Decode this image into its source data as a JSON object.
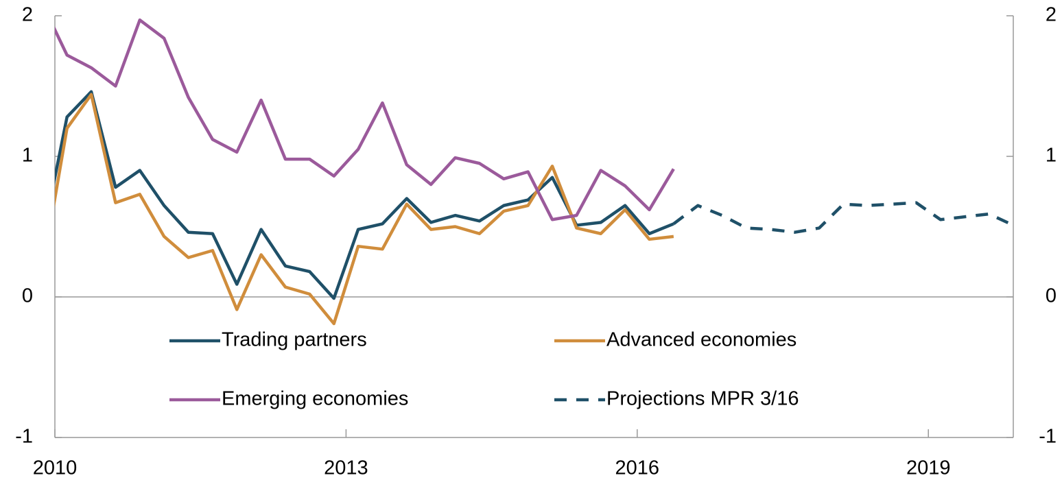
{
  "chart_data": {
    "type": "line",
    "x": [
      2009.875,
      2010.125,
      2010.375,
      2010.625,
      2010.875,
      2011.125,
      2011.375,
      2011.625,
      2011.875,
      2012.125,
      2012.375,
      2012.625,
      2012.875,
      2013.125,
      2013.375,
      2013.625,
      2013.875,
      2014.125,
      2014.375,
      2014.625,
      2014.875,
      2015.125,
      2015.375,
      2015.625,
      2015.875,
      2016.125,
      2016.375
    ],
    "series": [
      {
        "name": "Trading partners",
        "color": "#1f5068",
        "values": [
          0.42,
          1.28,
          1.46,
          0.78,
          0.9,
          0.65,
          0.46,
          0.45,
          0.09,
          0.48,
          0.22,
          0.18,
          -0.01,
          0.48,
          0.52,
          0.7,
          0.53,
          0.58,
          0.54,
          0.65,
          0.69,
          0.85,
          0.51,
          0.53,
          0.65,
          0.45,
          0.52
        ]
      },
      {
        "name": "Advanced economies",
        "color": "#d08d3c",
        "values": [
          0.2,
          1.2,
          1.44,
          0.67,
          0.73,
          0.43,
          0.28,
          0.33,
          -0.09,
          0.3,
          0.07,
          0.02,
          -0.19,
          0.36,
          0.34,
          0.66,
          0.48,
          0.5,
          0.45,
          0.61,
          0.65,
          0.93,
          0.49,
          0.45,
          0.62,
          0.41,
          0.43
        ]
      },
      {
        "name": "Emerging economies",
        "color": "#9b5a9b",
        "values": [
          2.08,
          1.72,
          1.63,
          1.5,
          1.97,
          1.84,
          1.42,
          1.12,
          1.03,
          1.4,
          0.98,
          0.98,
          0.86,
          1.05,
          1.38,
          0.94,
          0.8,
          0.99,
          0.95,
          0.84,
          0.89,
          0.55,
          0.58,
          0.9,
          0.79,
          0.62,
          0.91
        ]
      },
      {
        "name": "Projections MPR 3/16",
        "color": "#1f5068",
        "dashed": true,
        "x": [
          2016.375,
          2016.625,
          2016.875,
          2017.125,
          2017.375,
          2017.625,
          2017.875,
          2018.125,
          2018.375,
          2018.625,
          2018.875,
          2019.125,
          2019.375,
          2019.625,
          2019.875
        ],
        "values": [
          0.52,
          0.65,
          0.58,
          0.49,
          0.48,
          0.46,
          0.49,
          0.66,
          0.65,
          0.66,
          0.67,
          0.55,
          0.57,
          0.59,
          0.51
        ]
      }
    ],
    "xlim": [
      2010,
      2019.875
    ],
    "xticks": [
      2010,
      2013,
      2016,
      2019
    ],
    "ylim": [
      -1,
      2
    ],
    "yticks": [
      -1,
      0,
      1,
      2
    ],
    "y2lim": [
      -1,
      2
    ],
    "y2ticks": [
      -1,
      0,
      1,
      2
    ]
  }
}
